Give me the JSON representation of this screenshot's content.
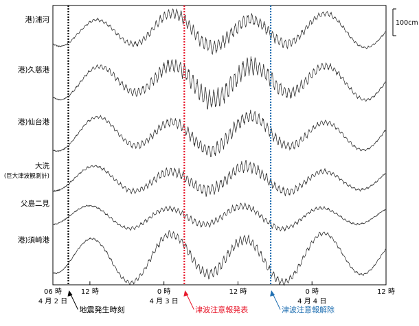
{
  "chart_data": {
    "type": "line",
    "stations": [
      {
        "label": "港)浦河",
        "sublabel": ""
      },
      {
        "label": "港)久慈港",
        "sublabel": ""
      },
      {
        "label": "港)仙台港",
        "sublabel": ""
      },
      {
        "label": "大洗",
        "sublabel": "(巨大津波観測計)"
      },
      {
        "label": "父島二見",
        "sublabel": ""
      },
      {
        "label": "港)須崎港",
        "sublabel": ""
      }
    ],
    "x_range_hours": [
      0,
      54
    ],
    "x_ticks": [
      {
        "hour": 0,
        "label": "06 時",
        "date": "4 月 2 日"
      },
      {
        "hour": 6,
        "label": "12 時",
        "date": ""
      },
      {
        "hour": 18,
        "label": "0 時",
        "date": "4 月 3 日"
      },
      {
        "hour": 30,
        "label": "12 時",
        "date": ""
      },
      {
        "hour": 42,
        "label": "0 時",
        "date": "4 月 4 日"
      },
      {
        "hour": 54,
        "label": "12 時",
        "date": ""
      }
    ],
    "scale_bar": {
      "label": "100cm"
    },
    "events": [
      {
        "hour": 2.5,
        "label": "地震発生時刻",
        "color": "#000000"
      },
      {
        "hour": 21.3,
        "label": "津波注意報発表",
        "color": "#e8192c"
      },
      {
        "hour": 35.3,
        "label": "津波注意報解除",
        "color": "#1f6fb2"
      }
    ],
    "title": "",
    "xlabel": "",
    "ylabel": ""
  }
}
